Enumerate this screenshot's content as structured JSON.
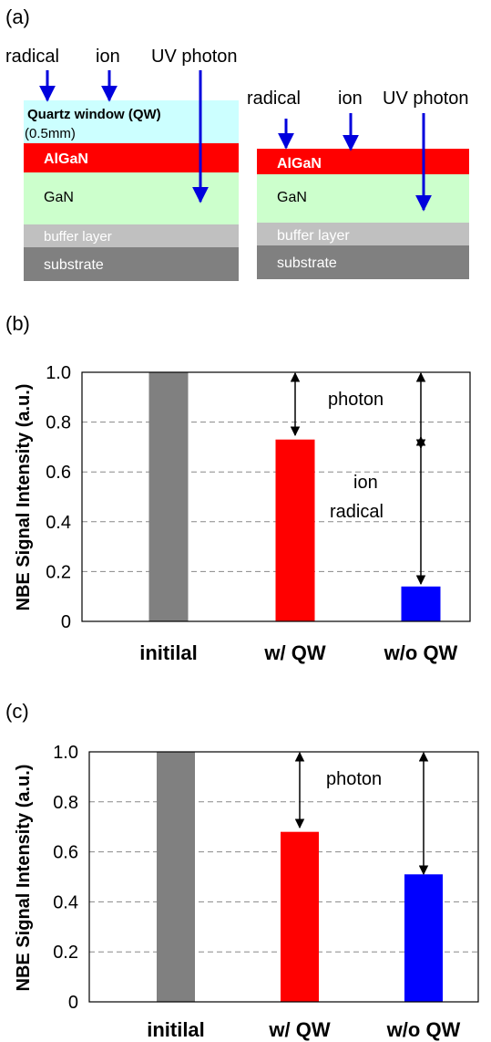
{
  "panel_a": {
    "label": "(a)",
    "left_arrows": {
      "radical": "radical",
      "ion": "ion",
      "uv": "UV photon"
    },
    "left_layers": {
      "quartz": "Quartz window (QW)",
      "quartz_thickness": "(0.5mm)",
      "algan": "AlGaN",
      "gan": "GaN",
      "buffer": "buffer layer",
      "substrate": "substrate"
    },
    "right_arrows": {
      "radical": "radical",
      "ion": "ion",
      "uv": "UV photon"
    },
    "right_layers": {
      "algan": "AlGaN",
      "gan": "GaN",
      "buffer": "buffer layer",
      "substrate": "substrate"
    },
    "colors": {
      "quartz": "#ccffff",
      "algan": "#ff0000",
      "gan": "#ccffcc",
      "buffer": "#c0c0c0",
      "substrate": "#808080",
      "arrow": "#0000dd"
    }
  },
  "chart_data": [
    {
      "panel_label": "(b)",
      "type": "bar",
      "ylabel": "NBE Signal Intensity (a.u.)",
      "categories": [
        "initilal",
        "w/ QW",
        "w/o QW"
      ],
      "values": [
        1.0,
        0.73,
        0.14
      ],
      "colors": [
        "#808080",
        "#ff0000",
        "#0000ff"
      ],
      "ylim": [
        0,
        1.0
      ],
      "yticks": [
        "0",
        "0.2",
        "0.4",
        "0.6",
        "0.8",
        "1.0"
      ],
      "grid": true,
      "annotations": [
        {
          "text": "photon",
          "x_between": "w/ QW",
          "y": 0.88
        },
        {
          "text": "ion",
          "x_between": "w/ QW",
          "y": 0.55
        },
        {
          "text": "radical",
          "x_between": "w/ QW",
          "y": 0.44
        }
      ]
    },
    {
      "panel_label": "(c)",
      "type": "bar",
      "ylabel": "NBE Signal Intensity (a.u.)",
      "categories": [
        "initilal",
        "w/ QW",
        "w/o QW"
      ],
      "values": [
        1.0,
        0.68,
        0.51
      ],
      "colors": [
        "#808080",
        "#ff0000",
        "#0000ff"
      ],
      "ylim": [
        0,
        1.0
      ],
      "yticks": [
        "0",
        "0.2",
        "0.4",
        "0.6",
        "0.8",
        "1.0"
      ],
      "grid": true,
      "annotations": [
        {
          "text": "photon",
          "x_between": "w/ QW",
          "y": 0.87
        }
      ]
    }
  ]
}
